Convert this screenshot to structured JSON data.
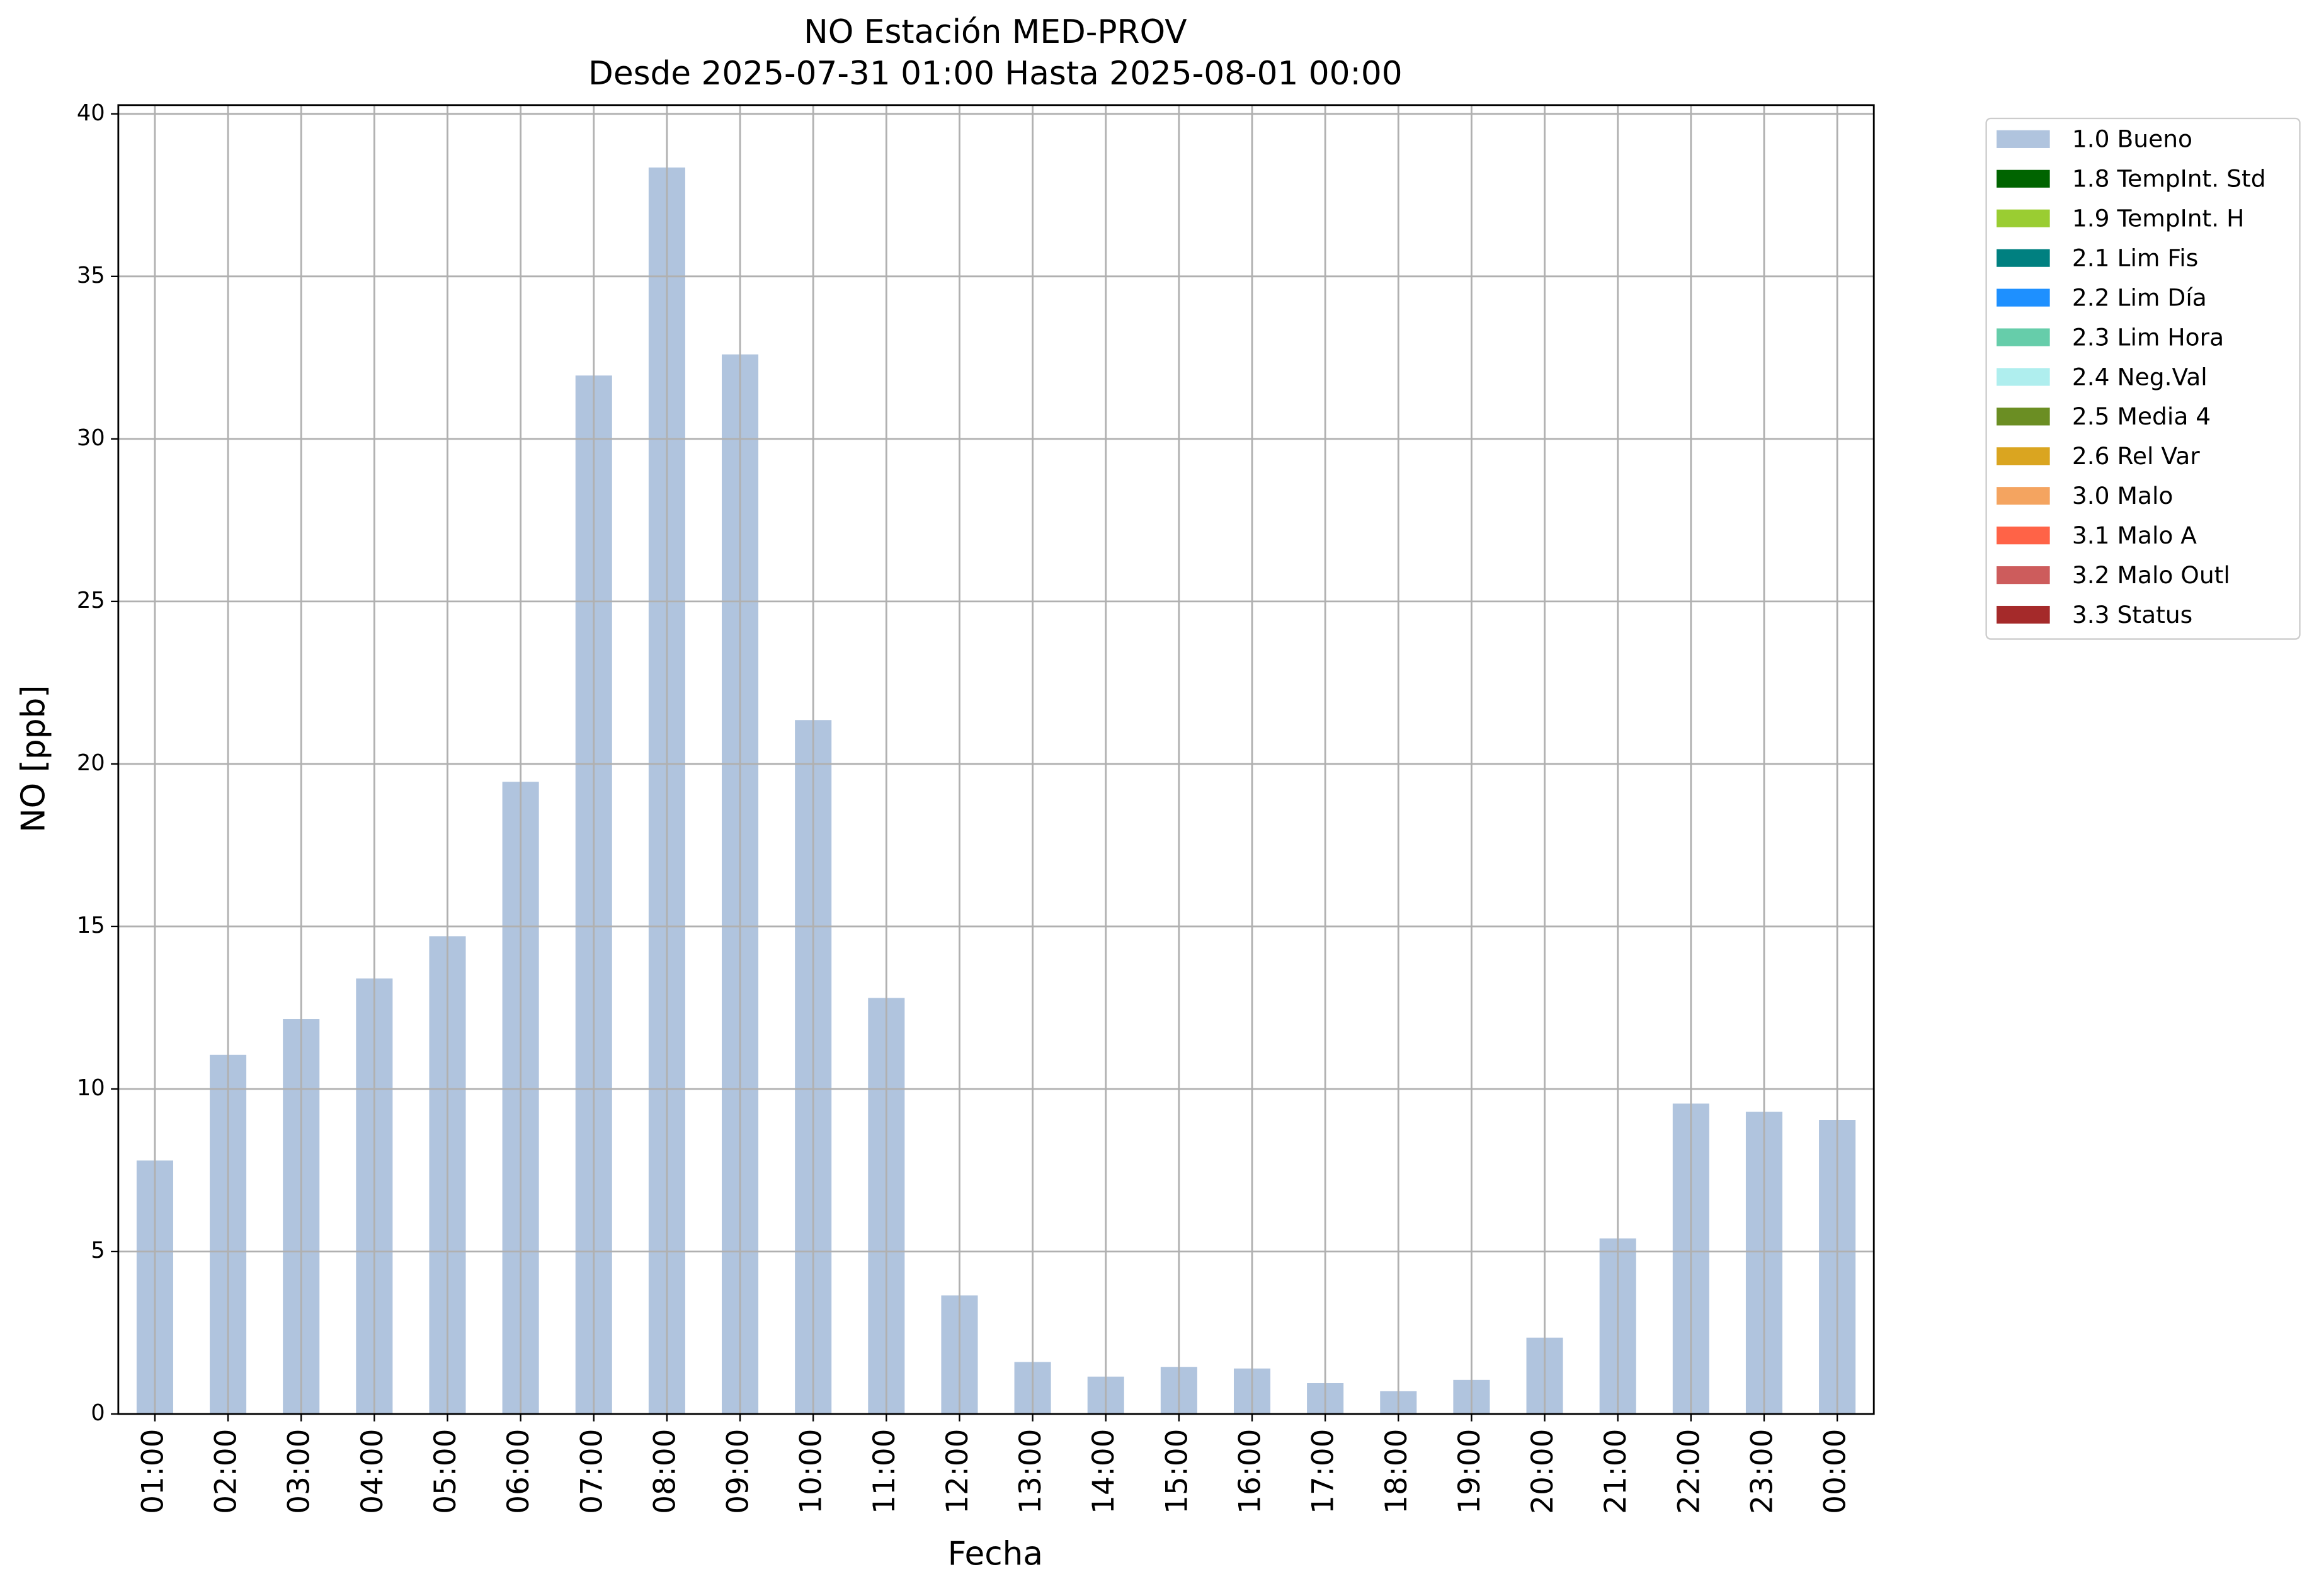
{
  "chart_data": {
    "type": "stacked_bar",
    "title": "NO Estación MED-PROV",
    "subtitle": "Desde 2025-07-31 01:00 Hasta 2025-08-01 00:00",
    "x_label": "Fecha",
    "y_label": "NO [ppb]",
    "categories": [
      "01:00",
      "02:00",
      "03:00",
      "04:00",
      "05:00",
      "06:00",
      "07:00",
      "08:00",
      "09:00",
      "10:00",
      "11:00",
      "12:00",
      "13:00",
      "14:00",
      "15:00",
      "16:00",
      "17:00",
      "18:00",
      "19:00",
      "20:00",
      "21:00",
      "22:00",
      "23:00",
      "00:00"
    ],
    "series": [
      {
        "name": "1.0 Bueno",
        "color": "#b0c4de",
        "values": [
          7.8,
          11.05,
          12.15,
          13.4,
          14.7,
          19.45,
          31.95,
          38.35,
          32.6,
          21.35,
          12.8,
          3.65,
          1.6,
          1.15,
          1.45,
          1.4,
          0.95,
          0.7,
          1.05,
          2.35,
          5.4,
          9.55,
          9.3,
          9.05
        ]
      },
      {
        "name": "1.8 TempInt. Std",
        "color": "#006400",
        "values": [
          0,
          0,
          0,
          0,
          0,
          0,
          0,
          0,
          0,
          0,
          0,
          0,
          0,
          0,
          0,
          0,
          0,
          0,
          0,
          0,
          0,
          0,
          0,
          0
        ]
      },
      {
        "name": "1.9 TempInt. H",
        "color": "#9acd32",
        "values": [
          0,
          0,
          0,
          0,
          0,
          0,
          0,
          0,
          0,
          0,
          0,
          0,
          0,
          0,
          0,
          0,
          0,
          0,
          0,
          0,
          0,
          0,
          0,
          0
        ]
      },
      {
        "name": "2.1 Lim Fis",
        "color": "#008080",
        "values": [
          0,
          0,
          0,
          0,
          0,
          0,
          0,
          0,
          0,
          0,
          0,
          0,
          0,
          0,
          0,
          0,
          0,
          0,
          0,
          0,
          0,
          0,
          0,
          0
        ]
      },
      {
        "name": "2.2 Lim Día",
        "color": "#1e90ff",
        "values": [
          0,
          0,
          0,
          0,
          0,
          0,
          0,
          0,
          0,
          0,
          0,
          0,
          0,
          0,
          0,
          0,
          0,
          0,
          0,
          0,
          0,
          0,
          0,
          0
        ]
      },
      {
        "name": "2.3 Lim Hora",
        "color": "#66cdaa",
        "values": [
          0,
          0,
          0,
          0,
          0,
          0,
          0,
          0,
          0,
          0,
          0,
          0,
          0,
          0,
          0,
          0,
          0,
          0,
          0,
          0,
          0,
          0,
          0,
          0
        ]
      },
      {
        "name": "2.4 Neg.Val",
        "color": "#afeeee",
        "values": [
          0,
          0,
          0,
          0,
          0,
          0,
          0,
          0,
          0,
          0,
          0,
          0,
          0,
          0,
          0,
          0,
          0,
          0,
          0,
          0,
          0,
          0,
          0,
          0
        ]
      },
      {
        "name": "2.5 Media 4",
        "color": "#6b8e23",
        "values": [
          0,
          0,
          0,
          0,
          0,
          0,
          0,
          0,
          0,
          0,
          0,
          0,
          0,
          0,
          0,
          0,
          0,
          0,
          0,
          0,
          0,
          0,
          0,
          0
        ]
      },
      {
        "name": "2.6 Rel Var",
        "color": "#daa520",
        "values": [
          0,
          0,
          0,
          0,
          0,
          0,
          0,
          0,
          0,
          0,
          0,
          0,
          0,
          0,
          0,
          0,
          0,
          0,
          0,
          0,
          0,
          0,
          0,
          0
        ]
      },
      {
        "name": "3.0 Malo",
        "color": "#f4a460",
        "values": [
          0,
          0,
          0,
          0,
          0,
          0,
          0,
          0,
          0,
          0,
          0,
          0,
          0,
          0,
          0,
          0,
          0,
          0,
          0,
          0,
          0,
          0,
          0,
          0
        ]
      },
      {
        "name": "3.1 Malo A",
        "color": "#ff6347",
        "values": [
          0,
          0,
          0,
          0,
          0,
          0,
          0,
          0,
          0,
          0,
          0,
          0,
          0,
          0,
          0,
          0,
          0,
          0,
          0,
          0,
          0,
          0,
          0,
          0
        ]
      },
      {
        "name": "3.2 Malo Outl",
        "color": "#cd5c5c",
        "values": [
          0,
          0,
          0,
          0,
          0,
          0,
          0,
          0,
          0,
          0,
          0,
          0,
          0,
          0,
          0,
          0,
          0,
          0,
          0,
          0,
          0,
          0,
          0,
          0
        ]
      },
      {
        "name": "3.3 Status",
        "color": "#a52a2a",
        "values": [
          0,
          0,
          0,
          0,
          0,
          0,
          0,
          0,
          0,
          0,
          0,
          0,
          0,
          0,
          0,
          0,
          0,
          0,
          0,
          0,
          0,
          0,
          0,
          0
        ]
      }
    ],
    "ylim": [
      0,
      40.27
    ],
    "yticks": [
      0,
      5,
      10,
      15,
      20,
      25,
      30,
      35,
      40
    ],
    "grid": true,
    "legend": "outside-right"
  }
}
